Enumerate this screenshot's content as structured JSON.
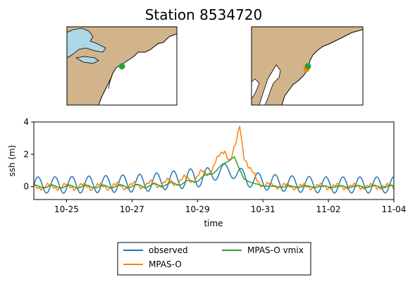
{
  "title": "Station 8534720",
  "colors": {
    "land": "#d2b48c",
    "water": "#add8e6",
    "station_marker": "#2ca02c",
    "station_marker_alt": "#ff7f0e"
  },
  "chart_data": {
    "type": "line",
    "xlabel": "time",
    "ylabel": "ssh (m)",
    "x_tick_labels": [
      "10-25",
      "10-27",
      "10-29",
      "10-31",
      "11-02",
      "11-04"
    ],
    "x_ticks_dates": [
      "2012-10-25",
      "2012-10-27",
      "2012-10-29",
      "2012-10-31",
      "2012-11-02",
      "2012-11-04"
    ],
    "xlim": [
      "2012-10-24",
      "2012-11-04"
    ],
    "ylim": [
      -0.8,
      4
    ],
    "y_ticks": [
      0,
      2,
      4
    ],
    "grid": false,
    "legend_position": "bottom-center, below axes",
    "series": [
      {
        "name": "observed",
        "color": "#1f77b4",
        "tide_period_hours": 12.42,
        "points": [
          [
            "2012-10-24T00",
            0.1
          ],
          [
            "2012-10-25T00",
            0.1
          ],
          [
            "2012-10-26T00",
            0.15
          ],
          [
            "2012-10-27T00",
            0.2
          ],
          [
            "2012-10-27T12",
            0.25
          ],
          [
            "2012-10-28T00",
            0.35
          ],
          [
            "2012-10-28T12",
            0.45
          ],
          [
            "2012-10-29T00",
            0.55
          ],
          [
            "2012-10-29T12",
            0.75
          ],
          [
            "2012-10-29T18",
            1.05
          ],
          [
            "2012-10-30T00",
            1.0
          ],
          [
            "2012-10-30T06",
            0.75
          ],
          [
            "2012-10-30T12",
            0.5
          ],
          [
            "2012-10-31T00",
            0.3
          ],
          [
            "2012-11-01T00",
            0.15
          ],
          [
            "2012-11-02T00",
            0.1
          ],
          [
            "2012-11-03T00",
            0.1
          ],
          [
            "2012-11-04T00",
            0.1
          ]
        ],
        "tide_amplitude_m": [
          [
            "2012-10-24T00",
            0.5
          ],
          [
            "2012-10-28T00",
            0.55
          ],
          [
            "2012-10-29T00",
            0.6
          ],
          [
            "2012-10-29T18",
            0.35
          ],
          [
            "2012-10-30T12",
            0.5
          ],
          [
            "2012-11-04T00",
            0.5
          ]
        ]
      },
      {
        "name": "MPAS-O",
        "color": "#ff7f0e",
        "tide_period_hours": 12.42,
        "points": [
          [
            "2012-10-24T00",
            0.0
          ],
          [
            "2012-10-26T00",
            0.0
          ],
          [
            "2012-10-27T00",
            0.05
          ],
          [
            "2012-10-28T00",
            0.2
          ],
          [
            "2012-10-28T18",
            0.45
          ],
          [
            "2012-10-29T06",
            0.8
          ],
          [
            "2012-10-29T15",
            1.6
          ],
          [
            "2012-10-29T20",
            2.3
          ],
          [
            "2012-10-30T00",
            1.6
          ],
          [
            "2012-10-30T04",
            2.6
          ],
          [
            "2012-10-30T07",
            3.8
          ],
          [
            "2012-10-30T10",
            1.9
          ],
          [
            "2012-10-30T14",
            1.1
          ],
          [
            "2012-10-30T20",
            0.4
          ],
          [
            "2012-10-31T00",
            0.1
          ],
          [
            "2012-11-01T00",
            0.0
          ],
          [
            "2012-11-02T00",
            0.0
          ],
          [
            "2012-11-04T00",
            0.0
          ]
        ],
        "tide_amplitude_m": [
          [
            "2012-10-24T00",
            0.15
          ],
          [
            "2012-10-28T00",
            0.2
          ],
          [
            "2012-10-29T12",
            0.3
          ],
          [
            "2012-10-30T06",
            0.05
          ],
          [
            "2012-10-30T18",
            0.15
          ],
          [
            "2012-11-04T00",
            0.12
          ]
        ]
      },
      {
        "name": "MPAS-O vmix",
        "color": "#2ca02c",
        "tide_period_hours": 12.42,
        "points": [
          [
            "2012-10-24T00",
            0.0
          ],
          [
            "2012-10-26T00",
            0.0
          ],
          [
            "2012-10-27T12",
            0.05
          ],
          [
            "2012-10-28T12",
            0.2
          ],
          [
            "2012-10-29T00",
            0.4
          ],
          [
            "2012-10-29T12",
            0.9
          ],
          [
            "2012-10-30T00",
            1.7
          ],
          [
            "2012-10-30T03",
            1.85
          ],
          [
            "2012-10-30T06",
            1.2
          ],
          [
            "2012-10-30T10",
            0.5
          ],
          [
            "2012-10-30T18",
            0.15
          ],
          [
            "2012-10-31T06",
            0.0
          ],
          [
            "2012-11-04T00",
            0.0
          ]
        ],
        "tide_amplitude_m": [
          [
            "2012-10-24T00",
            0.08
          ],
          [
            "2012-10-29T00",
            0.1
          ],
          [
            "2012-10-30T06",
            0.03
          ],
          [
            "2012-11-04T00",
            0.08
          ]
        ]
      }
    ]
  }
}
